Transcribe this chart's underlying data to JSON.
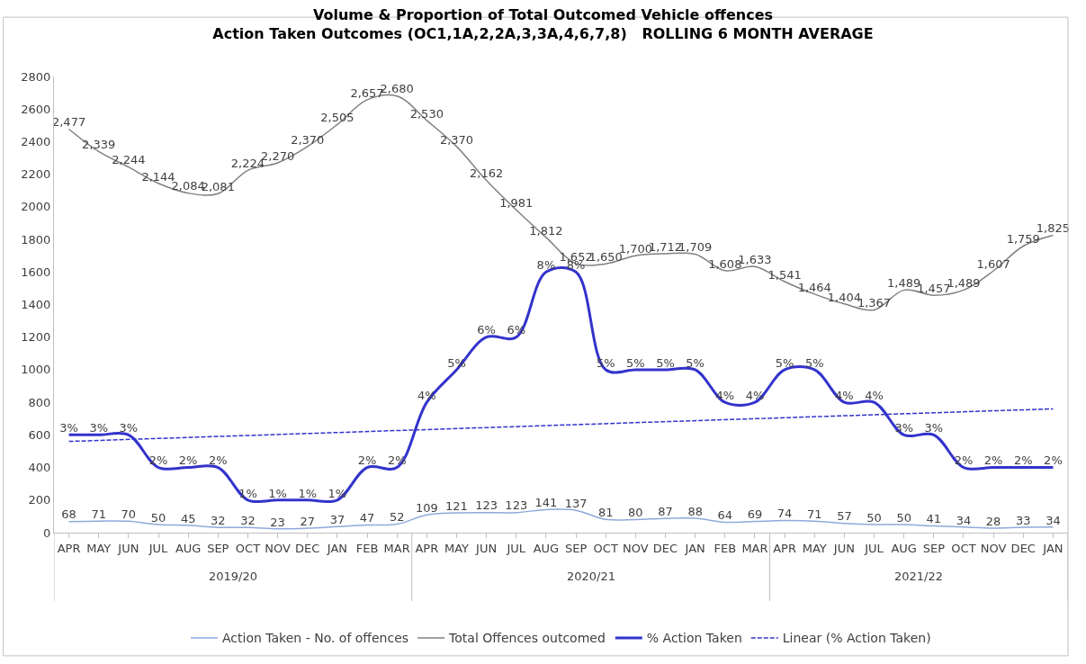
{
  "chart_data": {
    "type": "line",
    "title": "Volume & Proportion of Total Outcomed Vehicle offences\nAction Taken Outcomes (OC1,1A,2,2A,3,3A,4,6,7,8)   ROLLING 6 MONTH AVERAGE",
    "categories": [
      "APR",
      "MAY",
      "JUN",
      "JUL",
      "AUG",
      "SEP",
      "OCT",
      "NOV",
      "DEC",
      "JAN",
      "FEB",
      "MAR",
      "APR",
      "MAY",
      "JUN",
      "JUL",
      "AUG",
      "SEP",
      "OCT",
      "NOV",
      "DEC",
      "JAN",
      "FEB",
      "MAR",
      "APR",
      "MAY",
      "JUN",
      "JUL",
      "AUG",
      "SEP",
      "OCT",
      "NOV",
      "DEC",
      "JAN"
    ],
    "annotations": [
      "2019/20",
      "2020/21",
      "2021/22"
    ],
    "series": [
      {
        "name": "Action Taken - No. of offences",
        "color": "#8eaadb",
        "values": [
          68,
          71,
          70,
          50,
          45,
          32,
          32,
          23,
          27,
          37,
          47,
          52,
          109,
          121,
          123,
          123,
          141,
          137,
          81,
          80,
          87,
          88,
          64,
          69,
          74,
          71,
          57,
          50,
          50,
          41,
          34,
          28,
          33,
          34
        ]
      },
      {
        "name": "Total Offences outcomed",
        "color": "#808080",
        "values": [
          2477,
          2339,
          2244,
          2144,
          2084,
          2081,
          2224,
          2270,
          2370,
          2505,
          2657,
          2680,
          2530,
          2370,
          2162,
          1981,
          1812,
          1652,
          1650,
          1700,
          1712,
          1709,
          1608,
          1633,
          1541,
          1464,
          1404,
          1367,
          1489,
          1457,
          1489,
          1607,
          1759,
          1825
        ],
        "value_labels": [
          "2,477",
          "2,339",
          "2,244",
          "2,144",
          "2,084",
          "2,081",
          "2,224",
          "2,270",
          "2,370",
          "2,505",
          "2,657",
          "2,680",
          "2,530",
          "2,370",
          "2,162",
          "1,981",
          "1,812",
          "1,652",
          "1,650",
          "1,700",
          "1,712",
          "1,709",
          "1,608",
          "1,633",
          "1,541",
          "1,464",
          "1,404",
          "1,367",
          "1,489",
          "1,457",
          "1,489",
          "1,607",
          "1,759",
          "1,825"
        ]
      },
      {
        "name": "% Action Taken",
        "color": "#3333cc",
        "axis": "y2",
        "values": [
          3,
          3,
          3,
          2,
          2,
          2,
          1,
          1,
          1,
          1,
          2,
          2,
          4,
          5,
          6,
          6,
          8,
          8,
          5,
          5,
          5,
          5,
          4,
          4,
          5,
          5,
          4,
          4,
          3,
          3,
          2,
          2,
          2,
          2
        ],
        "value_labels": [
          "3%",
          "3%",
          "3%",
          "2%",
          "2%",
          "2%",
          "1%",
          "1%",
          "1%",
          "1%",
          "2%",
          "2%",
          "4%",
          "5%",
          "6%",
          "6%",
          "8%",
          "8%",
          "5%",
          "5%",
          "5%",
          "5%",
          "4%",
          "4%",
          "5%",
          "5%",
          "4%",
          "4%",
          "3%",
          "3%",
          "2%",
          "2%",
          "2%",
          "2%"
        ]
      },
      {
        "name": "Linear (% Action Taken)",
        "color": "#3333cc",
        "axis": "y2",
        "line_style": "dashed",
        "type": "line",
        "value_labels": [
          null,
          null,
          null,
          null,
          null,
          null,
          null,
          null,
          null,
          null,
          null,
          null,
          null,
          null,
          null,
          null,
          null,
          null,
          null,
          null,
          null,
          null,
          null,
          null,
          null,
          null,
          null,
          null,
          null,
          null,
          null,
          null,
          null,
          null
        ],
        "values": [
          2.8,
          null,
          null,
          null,
          null,
          null,
          null,
          null,
          null,
          null,
          null,
          null,
          null,
          null,
          null,
          null,
          null,
          null,
          null,
          null,
          null,
          null,
          null,
          null,
          null,
          null,
          null,
          null,
          null,
          null,
          null,
          null,
          null,
          3.8
        ]
      }
    ],
    "ylim": [
      0,
      2800
    ],
    "yticks": [
      0,
      200,
      400,
      600,
      800,
      1000,
      1200,
      1400,
      1600,
      1800,
      2000,
      2200,
      2400,
      2600,
      2800
    ],
    "y2lim": [
      0,
      14
    ],
    "tick_labels": "xy",
    "data_labels": true,
    "legend": "bottom",
    "marker": "none",
    "line_style": "solid"
  }
}
